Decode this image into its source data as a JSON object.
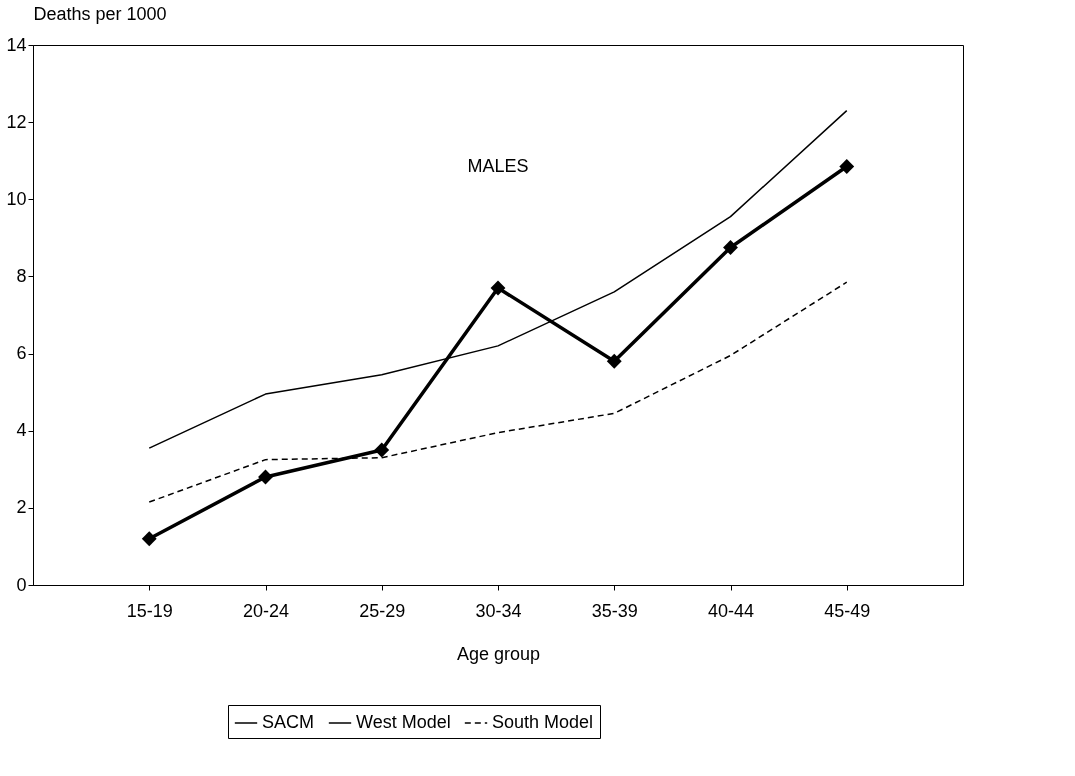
{
  "chart_data": {
    "type": "line",
    "xlabel": "Age group",
    "ylabel": "Deaths per 1000",
    "categories": [
      "15-19",
      "20-24",
      "25-29",
      "30-34",
      "35-39",
      "40-44",
      "45-49"
    ],
    "series": [
      {
        "name": "SACM",
        "color": "#000000",
        "line_style": "solid",
        "marker": "diamond",
        "values": [
          1.2,
          2.8,
          3.5,
          7.7,
          5.8,
          8.75,
          10.85
        ]
      },
      {
        "name": "West Model",
        "color": "#000000",
        "line_style": "solid",
        "marker": "none",
        "values": [
          3.55,
          4.95,
          5.45,
          6.2,
          7.6,
          9.55,
          12.3
        ]
      },
      {
        "name": "South Model",
        "color": "#000000",
        "line_style": "dashed",
        "marker": "none",
        "values": [
          2.15,
          3.25,
          3.3,
          3.95,
          4.45,
          5.95,
          7.85
        ]
      }
    ],
    "annotations": [
      "MALES"
    ],
    "ylim": [
      0,
      14
    ],
    "yticks": [
      0,
      2,
      4,
      6,
      8,
      10,
      12,
      14
    ],
    "grid": false,
    "legend": "bottom"
  }
}
